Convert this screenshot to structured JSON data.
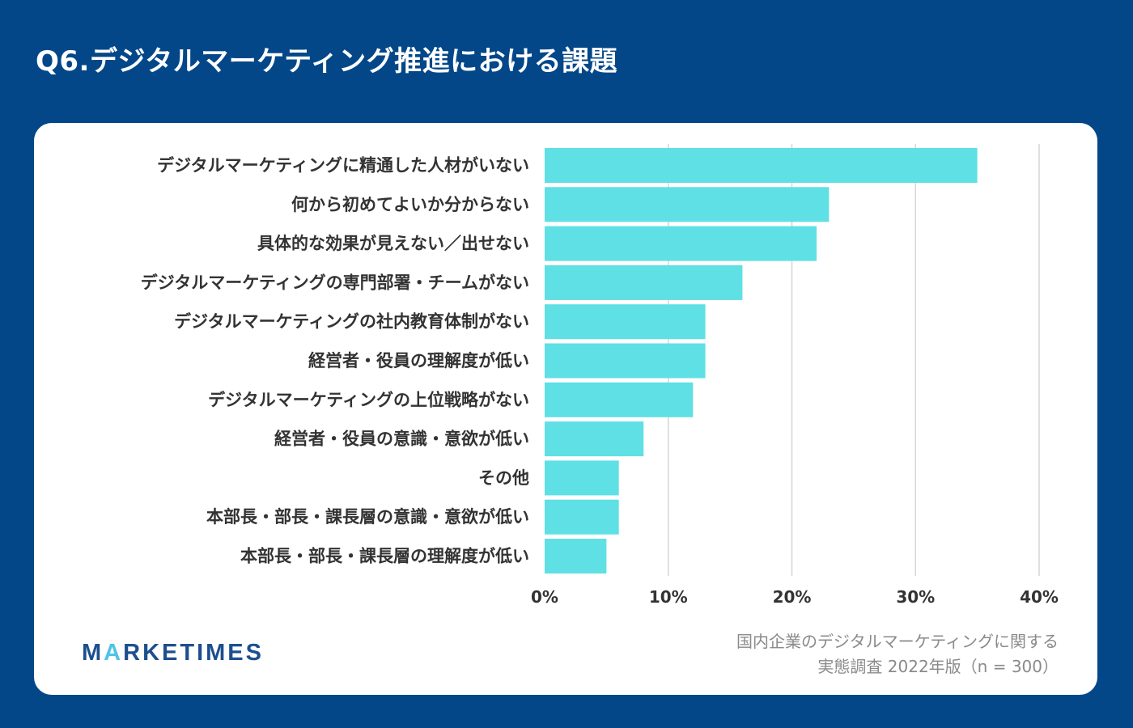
{
  "title": "Q6.デジタルマーケティング推進における課題",
  "colors": {
    "background": "#034789",
    "bar": "#5ee0e4",
    "grid": "#d6d6d6",
    "logo": "#1d4f8f",
    "logo_accent": "#4fc3e8"
  },
  "chart_data": {
    "type": "bar",
    "orientation": "horizontal",
    "title": "Q6.デジタルマーケティング推進における課題",
    "categories": [
      "デジタルマーケティングに精通した人材がいない",
      "何から初めてよいか分からない",
      "具体的な効果が見えない／出せない",
      "デジタルマーケティングの専門部署・チームがない",
      "デジタルマーケティングの社内教育体制がない",
      "経営者・役員の理解度が低い",
      "デジタルマーケティングの上位戦略がない",
      "経営者・役員の意識・意欲が低い",
      "その他",
      "本部長・部長・課長層の意識・意欲が低い",
      "本部長・部長・課長層の理解度が低い"
    ],
    "values": [
      35,
      23,
      22,
      16,
      13,
      13,
      12,
      8,
      6,
      6,
      5
    ],
    "xlim": [
      0,
      40
    ],
    "xticks": [
      "0%",
      "10%",
      "20%",
      "30%",
      "40%"
    ],
    "xlabel": "",
    "ylabel": "",
    "grid": true,
    "legend": "none"
  },
  "logo": {
    "pre": "M",
    "accent": "A",
    "post": "RKETIMES"
  },
  "source": {
    "line1": "国内企業のデジタルマーケティングに関する",
    "line2": "実態調査 2022年版（n = 300）"
  }
}
